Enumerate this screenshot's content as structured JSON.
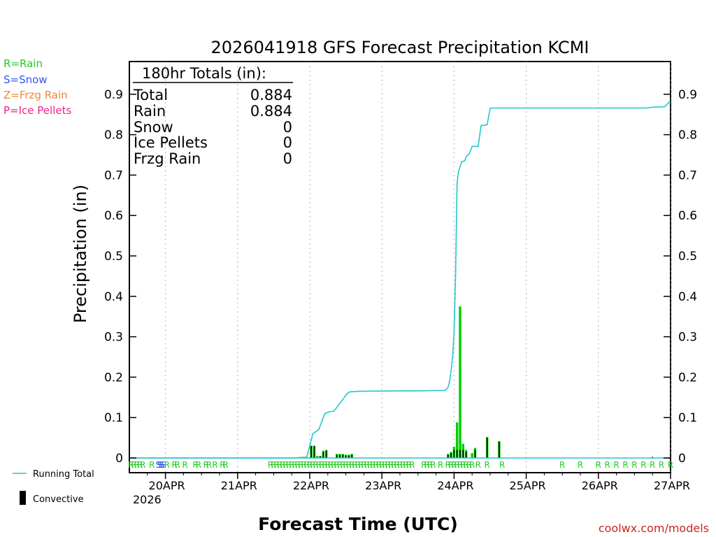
{
  "chart_data": {
    "type": "bar+line",
    "title": "2026041918 GFS Forecast Precipitation KCMI",
    "xlabel": "Forecast Time (UTC)",
    "ylabel": "Precipitation (in)",
    "watermark": "coolwx.com/models",
    "ylim": [
      0,
      0.97
    ],
    "y_ticks": [
      0,
      0.1,
      0.2,
      0.3,
      0.4,
      0.5,
      0.6,
      0.7,
      0.8,
      0.9
    ],
    "y_tick_labels": [
      "0",
      "0.1",
      "0.2",
      "0.3",
      "0.4",
      "0.5",
      "0.6",
      "0.7",
      "0.8",
      "0.9"
    ],
    "x_unit": "forecast hour",
    "xlim": [
      -6,
      174
    ],
    "x_ticks": [
      6,
      30,
      54,
      78,
      102,
      126,
      150,
      174
    ],
    "x_tick_labels": [
      "20APR",
      "21APR",
      "22APR",
      "23APR",
      "24APR",
      "25APR",
      "26APR",
      "27APR"
    ],
    "x_sub_label": "2026",
    "grid": "vertical dotted at day boundaries",
    "precip_type_legend": [
      {
        "code": "R",
        "label": "R=Rain",
        "color": "#22cc22"
      },
      {
        "code": "S",
        "label": "S=Snow",
        "color": "#3355ee"
      },
      {
        "code": "Z",
        "label": "Z=Frzg Rain",
        "color": "#ee8833"
      },
      {
        "code": "P",
        "label": "P=Ice Pellets",
        "color": "#ee2288"
      }
    ],
    "series_legend": [
      {
        "name": "Running Total",
        "color": "#22c6cc",
        "kind": "line"
      },
      {
        "name": "Convective",
        "color": "#000000",
        "kind": "bar"
      }
    ],
    "totals_box": {
      "title": "180hr Totals (in):",
      "rows": [
        {
          "label": "Total",
          "value": "0.884"
        },
        {
          "label": "Rain",
          "value": "0.884"
        },
        {
          "label": "Snow",
          "value": "0"
        },
        {
          "label": "Ice Pellets",
          "value": "0"
        },
        {
          "label": "Frzg Rain",
          "value": "0"
        }
      ]
    },
    "bars": {
      "width_hours": 0.8,
      "precip": [
        [
          54.5,
          0.03
        ],
        [
          55.5,
          0.03
        ],
        [
          56.5,
          0.005
        ],
        [
          57.5,
          0.005
        ],
        [
          58.5,
          0.018
        ],
        [
          59.5,
          0.02
        ],
        [
          63,
          0.01
        ],
        [
          64,
          0.01
        ],
        [
          65,
          0.01
        ],
        [
          66,
          0.008
        ],
        [
          67,
          0.008
        ],
        [
          68,
          0.01
        ],
        [
          100,
          0.01
        ],
        [
          101,
          0.015
        ],
        [
          102,
          0.028
        ],
        [
          103,
          0.088
        ],
        [
          104,
          0.375
        ],
        [
          105,
          0.035
        ],
        [
          106,
          0.02
        ],
        [
          108,
          0.012
        ],
        [
          109,
          0.025
        ],
        [
          113,
          0.052
        ],
        [
          117,
          0.042
        ]
      ],
      "convective": [
        [
          54.5,
          0.03
        ],
        [
          55.5,
          0.03
        ],
        [
          57.5,
          0.004
        ],
        [
          58.5,
          0.015
        ],
        [
          59.5,
          0.018
        ],
        [
          63,
          0.008
        ],
        [
          64,
          0.008
        ],
        [
          65,
          0.008
        ],
        [
          66,
          0.006
        ],
        [
          67,
          0.006
        ],
        [
          68,
          0.008
        ],
        [
          100,
          0.008
        ],
        [
          101,
          0.012
        ],
        [
          102,
          0.02
        ],
        [
          103,
          0.02
        ],
        [
          104,
          0.02
        ],
        [
          105,
          0.02
        ],
        [
          106,
          0.015
        ],
        [
          109,
          0.02
        ],
        [
          113,
          0.05
        ],
        [
          117,
          0.04
        ],
        [
          168,
          0.003
        ],
        [
          174,
          0.002
        ]
      ]
    },
    "running_total": {
      "x": [
        -6,
        48,
        53,
        54,
        55,
        56,
        57,
        58,
        59,
        60,
        61,
        62,
        63,
        64,
        65,
        66,
        67,
        68,
        69,
        70,
        84,
        90,
        96,
        99,
        100,
        100.5,
        101,
        101.5,
        102,
        102.5,
        103,
        103.5,
        104,
        104.5,
        105,
        105.5,
        106,
        106.5,
        107,
        108,
        109,
        110,
        111,
        112,
        113,
        114,
        115,
        116,
        117,
        118,
        140,
        150,
        160,
        166,
        168,
        172,
        173,
        174
      ],
      "y": [
        0,
        0,
        0.002,
        0.03,
        0.06,
        0.065,
        0.07,
        0.09,
        0.11,
        0.113,
        0.115,
        0.116,
        0.125,
        0.135,
        0.145,
        0.155,
        0.163,
        0.164,
        0.164,
        0.165,
        0.166,
        0.166,
        0.167,
        0.167,
        0.175,
        0.19,
        0.215,
        0.25,
        0.31,
        0.45,
        0.68,
        0.71,
        0.72,
        0.733,
        0.734,
        0.735,
        0.745,
        0.75,
        0.752,
        0.771,
        0.771,
        0.771,
        0.823,
        0.823,
        0.825,
        0.865,
        0.866,
        0.866,
        0.866,
        0.866,
        0.866,
        0.866,
        0.866,
        0.866,
        0.868,
        0.869,
        0.876,
        0.884
      ]
    },
    "type_strip": [
      [
        -5.5,
        "R"
      ],
      [
        -4.5,
        "R"
      ],
      [
        -3.5,
        "R"
      ],
      [
        -2.5,
        "R"
      ],
      [
        -1.5,
        "R"
      ],
      [
        1.5,
        "R"
      ],
      [
        3.6,
        "S"
      ],
      [
        4.2,
        "S"
      ],
      [
        4.8,
        "S"
      ],
      [
        5.4,
        "S"
      ],
      [
        6.5,
        "R"
      ],
      [
        9,
        "R"
      ],
      [
        10,
        "R"
      ],
      [
        12.5,
        "R"
      ],
      [
        16,
        "R"
      ],
      [
        17,
        "R"
      ],
      [
        19.5,
        "R"
      ],
      [
        20.5,
        "R"
      ],
      [
        22.5,
        "R"
      ],
      [
        25,
        "R"
      ],
      [
        26,
        "R"
      ],
      [
        41,
        "R"
      ],
      [
        42,
        "R"
      ],
      [
        43,
        "R"
      ],
      [
        44,
        "R"
      ],
      [
        45,
        "R"
      ],
      [
        46,
        "R"
      ],
      [
        47,
        "R"
      ],
      [
        48,
        "R"
      ],
      [
        49,
        "R"
      ],
      [
        50,
        "R"
      ],
      [
        51,
        "R"
      ],
      [
        52,
        "R"
      ],
      [
        53,
        "R"
      ],
      [
        54,
        "R"
      ],
      [
        55,
        "R"
      ],
      [
        56,
        "R"
      ],
      [
        57,
        "R"
      ],
      [
        58,
        "R"
      ],
      [
        59,
        "R"
      ],
      [
        60,
        "R"
      ],
      [
        61,
        "R"
      ],
      [
        62,
        "R"
      ],
      [
        63,
        "R"
      ],
      [
        64,
        "R"
      ],
      [
        65,
        "R"
      ],
      [
        66,
        "R"
      ],
      [
        67,
        "R"
      ],
      [
        68,
        "R"
      ],
      [
        69,
        "R"
      ],
      [
        70,
        "R"
      ],
      [
        71,
        "R"
      ],
      [
        72,
        "R"
      ],
      [
        73,
        "R"
      ],
      [
        74,
        "R"
      ],
      [
        75,
        "R"
      ],
      [
        76,
        "R"
      ],
      [
        77,
        "R"
      ],
      [
        78,
        "R"
      ],
      [
        79,
        "R"
      ],
      [
        80,
        "R"
      ],
      [
        81,
        "R"
      ],
      [
        82,
        "R"
      ],
      [
        83,
        "R"
      ],
      [
        84,
        "R"
      ],
      [
        85,
        "R"
      ],
      [
        86,
        "R"
      ],
      [
        87,
        "R"
      ],
      [
        88,
        "R"
      ],
      [
        92,
        "R"
      ],
      [
        93,
        "R"
      ],
      [
        94,
        "R"
      ],
      [
        95,
        "R"
      ],
      [
        97.5,
        "R"
      ],
      [
        100,
        "R"
      ],
      [
        101,
        "R"
      ],
      [
        102,
        "R"
      ],
      [
        103,
        "R"
      ],
      [
        104,
        "R"
      ],
      [
        105,
        "R"
      ],
      [
        106,
        "R"
      ],
      [
        107,
        "R"
      ],
      [
        108,
        "R"
      ],
      [
        110,
        "R"
      ],
      [
        113,
        "R"
      ],
      [
        118,
        "R"
      ],
      [
        138,
        "R"
      ],
      [
        144,
        "R"
      ],
      [
        150,
        "R"
      ],
      [
        153,
        "R"
      ],
      [
        156,
        "R"
      ],
      [
        159,
        "R"
      ],
      [
        162,
        "R"
      ],
      [
        165,
        "R"
      ],
      [
        168,
        "R"
      ],
      [
        171,
        "R"
      ],
      [
        174,
        "R"
      ]
    ]
  }
}
